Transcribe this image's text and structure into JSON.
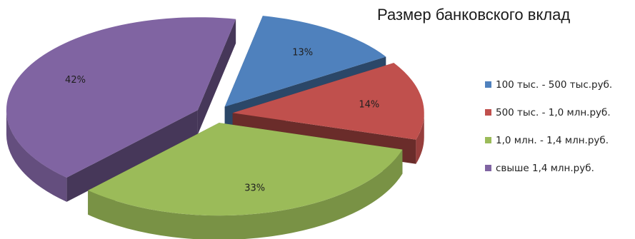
{
  "chart_data": {
    "type": "pie",
    "title": "Размер банковского вклад",
    "categories": [
      "100 тыс. - 500 тыс.руб.",
      "500 тыс. - 1,0 млн.руб.",
      "1,0 млн. - 1,4 млн.руб.",
      "свыше 1,4 млн.руб."
    ],
    "values": [
      13,
      14,
      33,
      42
    ],
    "data_labels": [
      "13%",
      "14%",
      "33%",
      "42%"
    ],
    "colors": [
      "#4f81bd",
      "#c0504d",
      "#9bbb59",
      "#8064a2"
    ],
    "legend_placement": "right",
    "style": "3d-exploded"
  }
}
